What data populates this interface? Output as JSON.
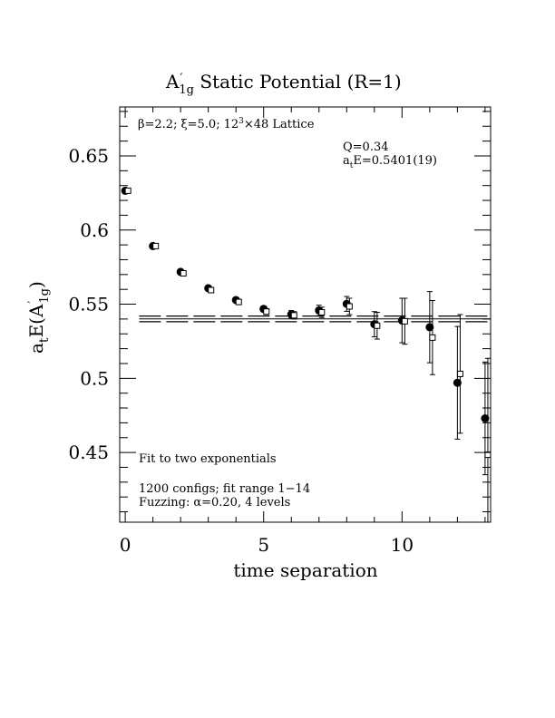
{
  "chart_data": {
    "type": "scatter",
    "title": {
      "main": "A",
      "sub": "1g",
      "rest": " Static Potential (R=1)"
    },
    "xlabel": "time separation",
    "ylabel": {
      "pre": "a",
      "sub_t": "t",
      "mid": "E(A",
      "sub_1g": "1g",
      "post": ")"
    },
    "xlim": [
      -0.2,
      13.2
    ],
    "ylim": [
      0.403,
      0.683
    ],
    "xticks": [
      {
        "value": 0,
        "label": "0"
      },
      {
        "value": 5,
        "label": "5"
      },
      {
        "value": 10,
        "label": "10"
      }
    ],
    "yticks": [
      {
        "value": 0.45,
        "label": "0.45"
      },
      {
        "value": 0.5,
        "label": "0.5"
      },
      {
        "value": 0.55,
        "label": "0.55"
      },
      {
        "value": 0.6,
        "label": "0.6"
      },
      {
        "value": 0.65,
        "label": "0.65"
      }
    ],
    "annotations": {
      "lattice": {
        "beta": "β=2.2;",
        "xi": "ξ=5.0;",
        "lat_pre": "12",
        "lat_exp": "3",
        "lat_post": "×48 Lattice"
      },
      "fit_q": "Q=0.34",
      "fit_e": {
        "pre": "a",
        "sub": "t",
        "post": "E=0.5401(19)"
      },
      "fit_type": "Fit to two exponentials",
      "configs": "1200 configs; fit range 1−14",
      "fuzzing": {
        "pre": "Fuzzing:",
        "alpha": "α=0.20, 4 levels"
      }
    },
    "fit": {
      "x0": 0.5,
      "x1": 13.2,
      "center": 0.5401,
      "err": 0.0019
    },
    "series": [
      {
        "marker": "filled-circle",
        "points": [
          {
            "x": 0,
            "y": 0.6265,
            "err": 0.0008
          },
          {
            "x": 1,
            "y": 0.5892,
            "err": 0.001
          },
          {
            "x": 2,
            "y": 0.5718,
            "err": 0.0012
          },
          {
            "x": 3,
            "y": 0.5608,
            "err": 0.0014
          },
          {
            "x": 4,
            "y": 0.5528,
            "err": 0.0016
          },
          {
            "x": 5,
            "y": 0.5468,
            "err": 0.002
          },
          {
            "x": 6,
            "y": 0.5432,
            "err": 0.0025
          },
          {
            "x": 7,
            "y": 0.5458,
            "err": 0.0035
          },
          {
            "x": 8,
            "y": 0.5502,
            "err": 0.005
          },
          {
            "x": 9,
            "y": 0.5365,
            "err": 0.0085
          },
          {
            "x": 10,
            "y": 0.539,
            "err": 0.015
          },
          {
            "x": 11,
            "y": 0.5345,
            "err": 0.024
          },
          {
            "x": 12,
            "y": 0.497,
            "err": 0.038
          },
          {
            "x": 13,
            "y": 0.473,
            "err": 0.038
          }
        ]
      },
      {
        "marker": "open-square",
        "points": [
          {
            "x": 0.1,
            "y": 0.6265,
            "err": 0.0008
          },
          {
            "x": 1.1,
            "y": 0.5892,
            "err": 0.001
          },
          {
            "x": 2.1,
            "y": 0.5708,
            "err": 0.0012
          },
          {
            "x": 3.1,
            "y": 0.5595,
            "err": 0.0014
          },
          {
            "x": 4.1,
            "y": 0.5515,
            "err": 0.0016
          },
          {
            "x": 5.1,
            "y": 0.545,
            "err": 0.002
          },
          {
            "x": 6.1,
            "y": 0.5425,
            "err": 0.0025
          },
          {
            "x": 7.1,
            "y": 0.5445,
            "err": 0.0035
          },
          {
            "x": 8.1,
            "y": 0.5485,
            "err": 0.0055
          },
          {
            "x": 9.1,
            "y": 0.5355,
            "err": 0.009
          },
          {
            "x": 10.1,
            "y": 0.5385,
            "err": 0.0155
          },
          {
            "x": 11.1,
            "y": 0.5275,
            "err": 0.025
          },
          {
            "x": 12.1,
            "y": 0.503,
            "err": 0.04
          },
          {
            "x": 13.1,
            "y": 0.4485,
            "err": 0.065
          }
        ]
      }
    ]
  }
}
